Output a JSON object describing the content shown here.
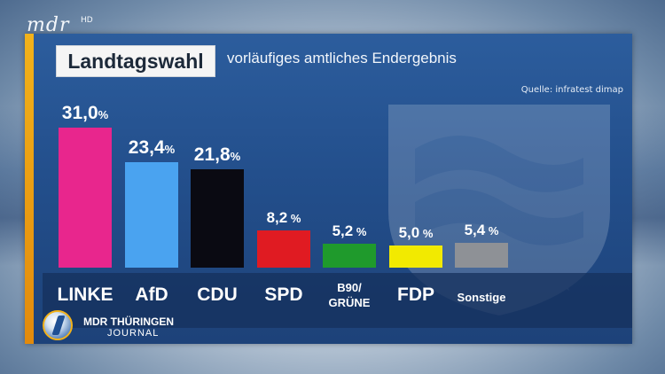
{
  "broadcaster": {
    "logo_text": "mdr",
    "logo_suffix": "HD"
  },
  "header": {
    "title": "Landtagswahl",
    "subtitle": "vorläufiges amtliches Endergebnis",
    "source": "Quelle: infratest dimap"
  },
  "show": {
    "name": "MDR THÜRINGEN",
    "subname": "JOURNAL"
  },
  "chart_data": {
    "type": "bar",
    "categories": [
      "LINKE",
      "AfD",
      "CDU",
      "SPD",
      "B90/\nGRÜNE",
      "FDP",
      "Sonstige"
    ],
    "values": [
      31.0,
      23.4,
      21.8,
      8.2,
      5.2,
      5.0,
      5.4
    ],
    "value_labels": [
      "31,0",
      "23,4",
      "21,8",
      "8,2",
      "5,2",
      "5,0",
      "5,4"
    ],
    "unit": "%",
    "colors": [
      "#e8268d",
      "#4aa3f0",
      "#0a0a12",
      "#e01b22",
      "#1f9a2c",
      "#f2ea00",
      "#8e9196"
    ],
    "title": "Landtagswahl",
    "subtitle": "vorläufiges amtliches Endergebnis"
  },
  "theme": {
    "panel": "#234f8c",
    "accent": "#f2b21a"
  }
}
